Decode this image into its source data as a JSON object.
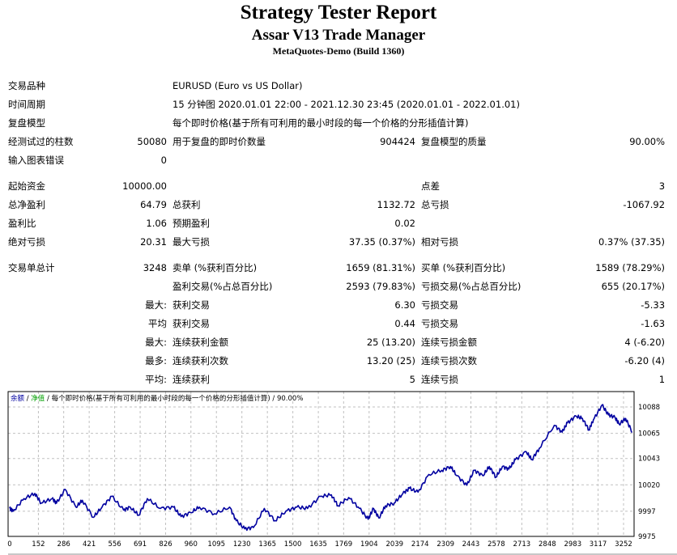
{
  "header": {
    "title": "Strategy Tester Report",
    "expert": "Assar V13 Trade Manager",
    "server": "MetaQuotes-Demo (Build 1360)"
  },
  "info": {
    "symbol_label": "交易品种",
    "symbol_value": "EURUSD (Euro vs US Dollar)",
    "period_label": "时间周期",
    "period_value": "15 分钟图 2020.01.01 22:00 - 2021.12.30 23:45 (2020.01.01 - 2022.01.01)",
    "model_label": "复盘模型",
    "model_value": "每个即时价格(基于所有可利用的最小时段的每一个价格的分形插值计算)",
    "bars_label": "经测试过的柱数",
    "bars_value": "50080",
    "ticks_label": "用于复盘的即时价数量",
    "ticks_value": "904424",
    "quality_label": "复盘模型的质量",
    "quality_value": "90.00%",
    "errors_label": "输入图表错误",
    "errors_value": "0"
  },
  "results": {
    "deposit_label": "起始资金",
    "deposit_value": "10000.00",
    "spread_label": "点差",
    "spread_value": "3",
    "net_label": "总净盈利",
    "net_value": "64.79",
    "gross_profit_label": "总获利",
    "gross_profit_value": "1132.72",
    "gross_loss_label": "总亏损",
    "gross_loss_value": "-1067.92",
    "pf_label": "盈利比",
    "pf_value": "1.06",
    "expected_label": "预期盈利",
    "expected_value": "0.02",
    "abs_dd_label": "绝对亏损",
    "abs_dd_value": "20.31",
    "max_dd_label": "最大亏损",
    "max_dd_value": "37.35 (0.37%)",
    "rel_dd_label": "相对亏损",
    "rel_dd_value": "0.37% (37.35)"
  },
  "trades": {
    "total_label": "交易单总计",
    "total_value": "3248",
    "short_label": "卖单 (%获利百分比)",
    "short_value": "1659 (81.31%)",
    "long_label": "买单 (%获利百分比)",
    "long_value": "1589 (78.29%)",
    "win_label": "盈利交易(%占总百分比)",
    "win_value": "2593 (79.83%)",
    "loss_label": "亏损交易(%占总百分比)",
    "loss_value": "655 (20.17%)",
    "rows": [
      {
        "prefix": "最大:",
        "l1": "获利交易",
        "v1": "6.30",
        "l2": "亏损交易",
        "v2": "-5.33"
      },
      {
        "prefix": "平均",
        "l1": "获利交易",
        "v1": "0.44",
        "l2": "亏损交易",
        "v2": "-1.63"
      },
      {
        "prefix": "最大:",
        "l1": "连续获利金额",
        "v1": "25 (13.20)",
        "l2": "连续亏损金额",
        "v2": "4 (-6.20)"
      },
      {
        "prefix": "最多:",
        "l1": "连续获利次数",
        "v1": "13.20 (25)",
        "l2": "连续亏损次数",
        "v2": "-6.20 (4)"
      },
      {
        "prefix": "平均:",
        "l1": "连续获利",
        "v1": "5",
        "l2": "连续亏损",
        "v2": "1"
      }
    ]
  },
  "chart_data": {
    "type": "line",
    "legend": {
      "balance": "余额",
      "sep1": " / ",
      "equity": "净值",
      "rest": " / 每个即时价格(基于所有可利用的最小时段的每一个价格的分形插值计算) / 90.00%"
    },
    "colors": {
      "balance": "#0000a0",
      "equity": "#00a000",
      "grid": "#c0c0c0"
    },
    "xlabel": "",
    "ylabel": "",
    "xlim": [
      0,
      3298
    ],
    "ylim": [
      9975,
      10088
    ],
    "x_ticks": [
      "0",
      "152",
      "286",
      "421",
      "556",
      "691",
      "826",
      "960",
      "1095",
      "1230",
      "1365",
      "1500",
      "1635",
      "1769",
      "1904",
      "2039",
      "2174",
      "2309",
      "2443",
      "2578",
      "2713",
      "2848",
      "2983",
      "3117",
      "3252"
    ],
    "y_ticks": [
      "10088",
      "10065",
      "10043",
      "10020",
      "9997",
      "9975"
    ],
    "grid": true,
    "series": [
      {
        "name": "余额",
        "x": [
          0,
          18,
          76,
          133,
          167,
          225,
          248,
          294,
          351,
          385,
          443,
          489,
          541,
          603,
          638,
          683,
          729,
          798,
          867,
          908,
          959,
          1005,
          1085,
          1165,
          1200,
          1245,
          1291,
          1349,
          1406,
          1463,
          1521,
          1578,
          1647,
          1704,
          1739,
          1796,
          1853,
          1899,
          1927,
          1956,
          1991,
          2037,
          2083,
          2117,
          2163,
          2220,
          2289,
          2335,
          2369,
          2422,
          2461,
          2507,
          2541,
          2576,
          2610,
          2645,
          2679,
          2736,
          2766,
          2805,
          2885,
          2927,
          2954,
          3000,
          3034,
          3069,
          3092,
          3138,
          3172,
          3206,
          3229,
          3263,
          3298
        ],
        "y": [
          9999.5,
          9997,
          10008,
          10012.5,
          10004,
          10008,
          10004,
          10016,
          10000.6,
          10006.5,
          9991.6,
          10000.6,
          10010,
          9998,
          10000.6,
          9993.5,
          10008,
          9999.4,
          10000.6,
          9992.3,
          9995.8,
          10000.6,
          9994.7,
          10000.6,
          9988.7,
          9981.6,
          9982.8,
          9999.4,
          9988.7,
          9997,
          10000.6,
          9999.4,
          10010,
          10011.3,
          10001.8,
          10009,
          9999.4,
          9990,
          9999.4,
          9991,
          10001.8,
          10004,
          10012.5,
          10017,
          10013.6,
          10029,
          10032.7,
          10036,
          10028,
          10019.6,
          10032.7,
          10028,
          10036,
          10026.7,
          10036,
          10033.8,
          10042,
          10049,
          10042,
          10051.7,
          10072,
          10066,
          10074,
          10080,
          10078,
          10068,
          10076.6,
          10089.7,
          10081,
          10079,
          10073,
          10078,
          10066
        ]
      }
    ]
  }
}
